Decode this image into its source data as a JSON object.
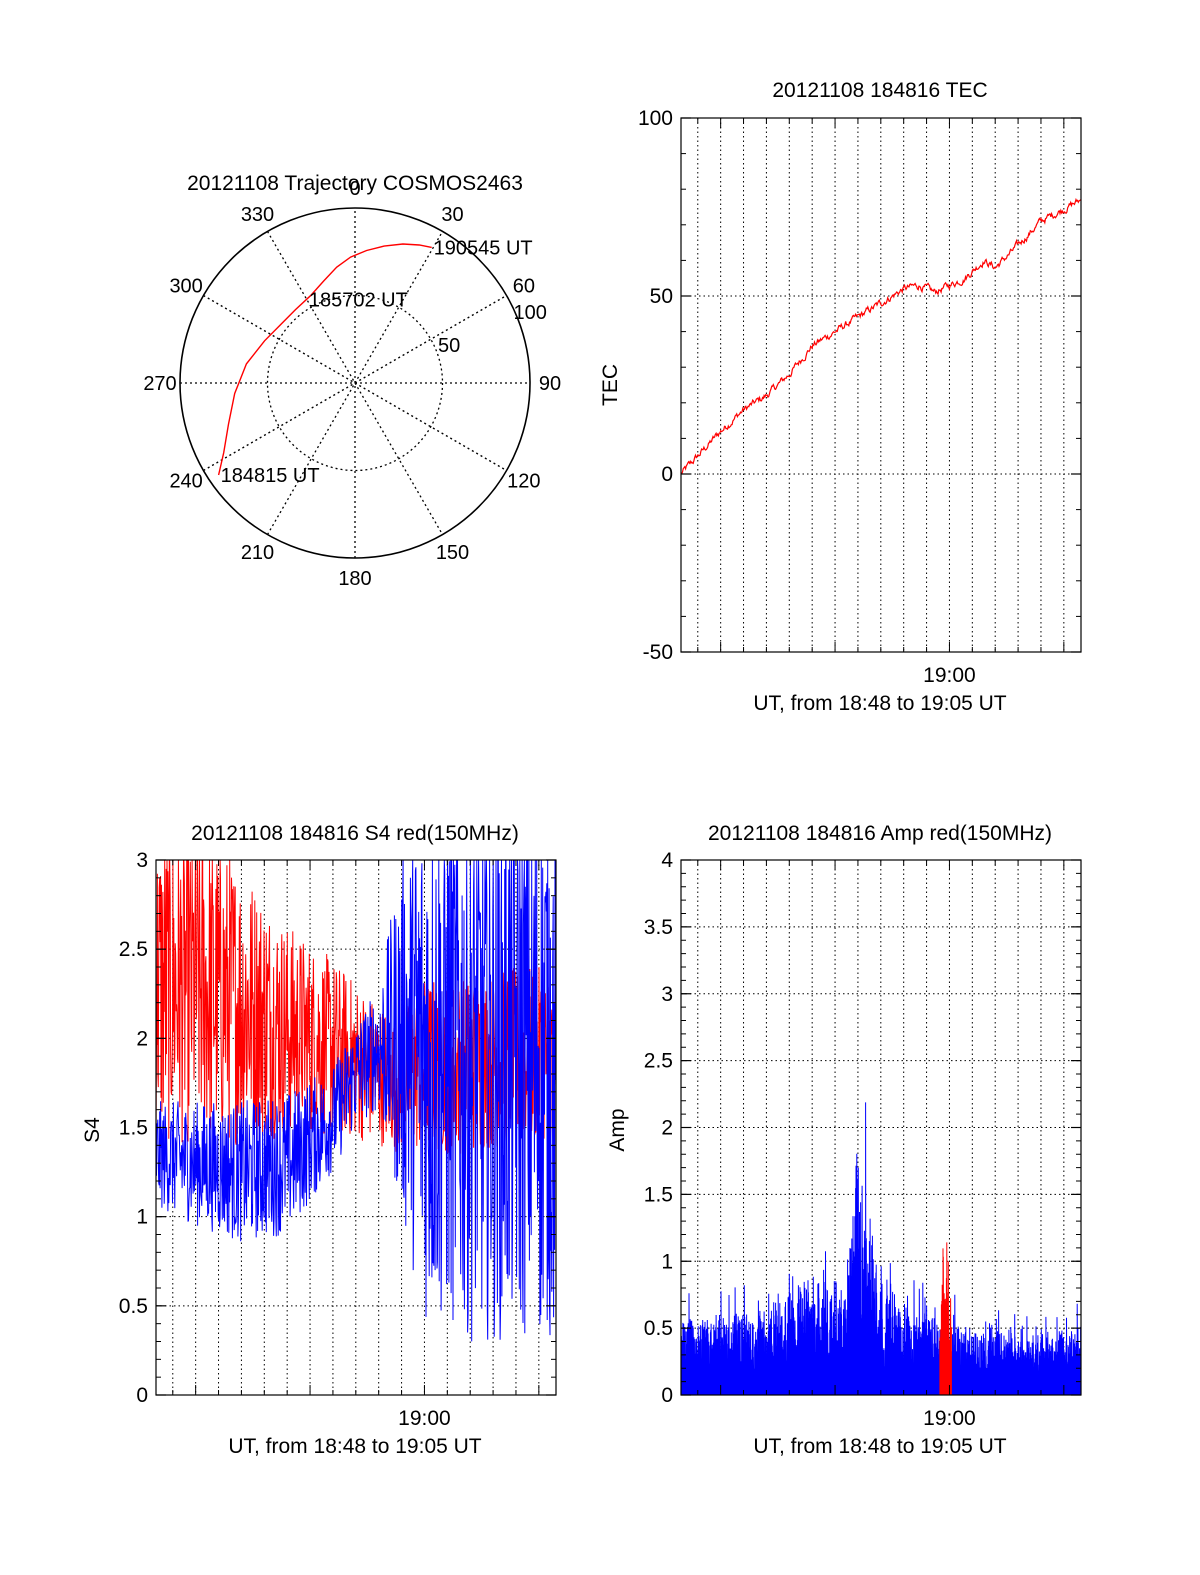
{
  "colors": {
    "primary": "#ff0000",
    "secondary": "#0000ff",
    "axis": "#000000",
    "grid": "#000000"
  },
  "chart_data": [
    {
      "id": "trajectory",
      "type": "polar",
      "title": "20121108 Trajectory COSMOS2463",
      "azimuth_labels": [
        "0",
        "30",
        "60",
        "90",
        "120",
        "150",
        "180",
        "210",
        "240",
        "270",
        "300",
        "330"
      ],
      "ring_labels": [
        "50",
        "100"
      ],
      "rlim": [
        0,
        100
      ],
      "grid": true,
      "track": [
        {
          "az": 236,
          "r": 94
        },
        {
          "az": 242,
          "r": 85
        },
        {
          "az": 252,
          "r": 76
        },
        {
          "az": 265,
          "r": 69
        },
        {
          "az": 280,
          "r": 63
        },
        {
          "az": 295,
          "r": 57
        },
        {
          "az": 308,
          "r": 54
        },
        {
          "az": 321,
          "r": 54
        },
        {
          "az": 333,
          "r": 56
        },
        {
          "az": 343,
          "r": 61
        },
        {
          "az": 351,
          "r": 67
        },
        {
          "az": 358,
          "r": 72
        },
        {
          "az": 5,
          "r": 76
        },
        {
          "az": 12,
          "r": 80
        },
        {
          "az": 19,
          "r": 84
        },
        {
          "az": 25,
          "r": 87
        },
        {
          "az": 29.5,
          "r": 89
        }
      ],
      "annotations": [
        {
          "text": "184815 UT",
          "az": 236,
          "r": 94
        },
        {
          "text": "185702 UT",
          "az": 330,
          "r": 55
        },
        {
          "text": "190545 UT",
          "az": 29.5,
          "r": 89
        }
      ]
    },
    {
      "id": "tec",
      "type": "line",
      "title": "20121108 184816 TEC",
      "xlabel": "UT, from 18:48 to 19:05 UT",
      "ylabel": "TEC",
      "xlim": [
        "18:48:16",
        "19:05:45"
      ],
      "ylim": [
        -50,
        100
      ],
      "y_ticks": [
        "100",
        "50",
        "0",
        "-50"
      ],
      "x_tick_labels": [
        {
          "time": "19:00",
          "text": "19:00"
        }
      ],
      "grid": true,
      "series": [
        {
          "color": "#ff0000",
          "x": [
            "18:48:16",
            "18:49:00",
            "18:50:00",
            "18:51:00",
            "18:52:00",
            "18:53:00",
            "18:54:00",
            "18:55:00",
            "18:56:00",
            "18:57:00",
            "18:58:00",
            "18:58:40",
            "18:59:20",
            "19:00:00",
            "19:00:40",
            "19:01:30",
            "19:02:00",
            "19:02:40",
            "19:04:00",
            "19:05:45"
          ],
          "y": [
            0,
            5,
            12,
            18,
            22,
            28,
            36,
            40,
            44,
            48,
            52,
            53,
            51,
            53,
            55,
            60,
            58,
            62,
            71,
            77
          ]
        }
      ]
    },
    {
      "id": "s4",
      "type": "line",
      "title": "20121108 184816 S4 red(150MHz)",
      "xlabel": "UT, from 18:48 to 19:05 UT",
      "ylabel": "S4",
      "xlim": [
        "18:48:16",
        "19:05:45"
      ],
      "ylim": [
        0,
        3
      ],
      "y_ticks": [
        "3",
        "2.5",
        "2",
        "1.5",
        "1",
        "0.5",
        "0"
      ],
      "x_tick_labels": [
        {
          "time": "19:00",
          "text": "19:00"
        }
      ],
      "grid": true,
      "series": [
        {
          "color": "#ff0000",
          "x": [
            "18:48:16",
            "18:50:00",
            "18:52:00",
            "18:54:00",
            "18:56:00",
            "18:58:00",
            "18:59:00",
            "19:00:00",
            "19:02:00",
            "19:04:00",
            "19:05:45"
          ],
          "y": [
            2.3,
            2.3,
            2.2,
            2.05,
            1.95,
            1.8,
            1.75,
            1.85,
            1.85,
            1.9,
            1.9
          ],
          "spread": [
            0.9,
            0.9,
            0.8,
            0.6,
            0.5,
            0.4,
            0.4,
            0.5,
            0.5,
            0.5,
            0.5
          ]
        },
        {
          "color": "#0000ff",
          "x": [
            "18:48:16",
            "18:50:00",
            "18:52:00",
            "18:54:00",
            "18:56:00",
            "18:57:00",
            "18:58:00",
            "18:59:00",
            "19:00:00",
            "19:02:00",
            "19:04:00",
            "19:05:45"
          ],
          "y": [
            1.35,
            1.3,
            1.25,
            1.3,
            1.55,
            1.8,
            1.95,
            2.0,
            1.9,
            1.9,
            1.9,
            1.9
          ],
          "spread": [
            0.3,
            0.35,
            0.4,
            0.4,
            0.3,
            0.3,
            0.35,
            1.0,
            1.5,
            1.6,
            1.6,
            1.6
          ]
        }
      ]
    },
    {
      "id": "amp",
      "type": "line",
      "title": "20121108 184816 Amp red(150MHz)",
      "xlabel": "UT, from 18:48 to 19:05 UT",
      "ylabel": "Amp",
      "xlim": [
        "18:48:16",
        "19:05:45"
      ],
      "ylim": [
        0,
        4
      ],
      "y_ticks": [
        "4",
        "3.5",
        "3",
        "2.5",
        "2",
        "1.5",
        "1",
        "0.5",
        "0"
      ],
      "x_tick_labels": [
        {
          "time": "19:00",
          "text": "19:00"
        }
      ],
      "grid": true,
      "series": [
        {
          "color": "#0000ff",
          "x": [
            "18:48:16",
            "18:50:00",
            "18:52:00",
            "18:53:30",
            "18:54:00",
            "18:55:30",
            "18:55:48",
            "18:56:00",
            "18:57:00",
            "18:58:00",
            "19:00:00",
            "19:02:00",
            "19:04:00",
            "19:05:45"
          ],
          "y": [
            0.45,
            0.45,
            0.5,
            0.6,
            0.6,
            0.6,
            1.1,
            1.6,
            0.65,
            0.55,
            0.4,
            0.35,
            0.35,
            0.4
          ],
          "spread": [
            0.25,
            0.3,
            0.35,
            0.6,
            0.6,
            0.5,
            0.9,
            1.0,
            0.5,
            0.4,
            0.35,
            0.3,
            0.3,
            0.3
          ]
        },
        {
          "color": "#ff0000",
          "x": [
            "18:59:35",
            "18:59:45",
            "18:59:55",
            "19:00:05"
          ],
          "y": [
            0.6,
            1.0,
            0.95,
            0.55
          ],
          "spread": [
            0.1,
            0.3,
            0.3,
            0.1
          ]
        }
      ]
    }
  ]
}
